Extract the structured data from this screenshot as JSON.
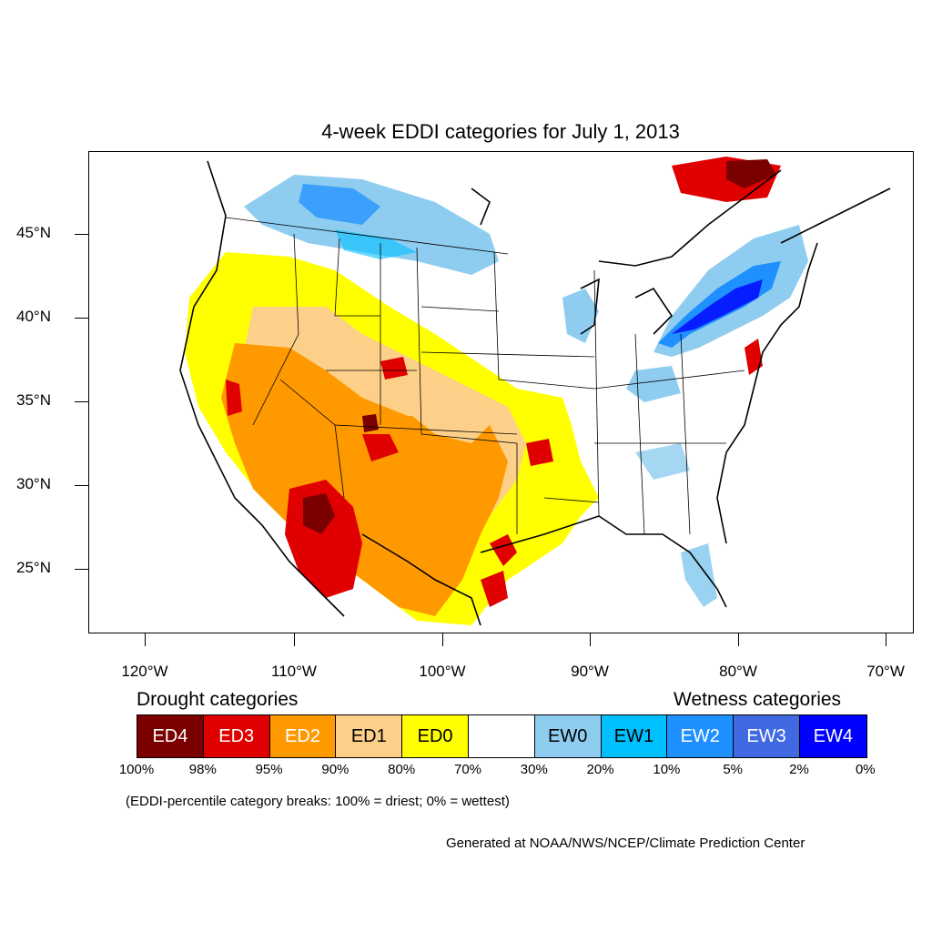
{
  "title": "4-week EDDI categories for July 1, 2013",
  "map": {
    "latitude_labels": [
      "45°N",
      "40°N",
      "35°N",
      "30°N",
      "25°N"
    ],
    "longitude_labels": [
      "120°W",
      "110°W",
      "100°W",
      "90°W",
      "80°W",
      "70°W"
    ],
    "colors": {
      "ED4": "#7a0000",
      "ED3": "#e00000",
      "ED2": "#ff9900",
      "ED1": "#fdd08a",
      "ED0": "#ffff00",
      "neutral": "#ffffff",
      "EW0": "#8fcdf0",
      "EW1": "#00bfff",
      "EW2": "#1e90ff",
      "EW3": "#4169e1",
      "EW4": "#0000ff"
    }
  },
  "legend": {
    "drought_heading": "Drought categories",
    "wetness_heading": "Wetness categories",
    "categories": [
      {
        "label": "ED4",
        "color": "#7a0000",
        "text_color": "#ffffff"
      },
      {
        "label": "ED3",
        "color": "#e00000",
        "text_color": "#ffffff"
      },
      {
        "label": "ED2",
        "color": "#ff9900",
        "text_color": "#ffffff"
      },
      {
        "label": "ED1",
        "color": "#fdd08a",
        "text_color": "#000000"
      },
      {
        "label": "ED0",
        "color": "#ffff00",
        "text_color": "#000000"
      },
      {
        "label": "",
        "color": "#ffffff",
        "text_color": "#000000"
      },
      {
        "label": "EW0",
        "color": "#8fcdf0",
        "text_color": "#000000"
      },
      {
        "label": "EW1",
        "color": "#00bfff",
        "text_color": "#000000"
      },
      {
        "label": "EW2",
        "color": "#1e90ff",
        "text_color": "#ffffff"
      },
      {
        "label": "EW3",
        "color": "#4169e1",
        "text_color": "#ffffff"
      },
      {
        "label": "EW4",
        "color": "#0000ff",
        "text_color": "#ffffff"
      }
    ],
    "percent_breaks": [
      "100%",
      "98%",
      "95%",
      "90%",
      "80%",
      "70%",
      "30%",
      "20%",
      "10%",
      "5%",
      "2%",
      "0%"
    ]
  },
  "note": "(EDDI-percentile category breaks: 100% = driest; 0% = wettest)",
  "credit": "Generated at NOAA/NWS/NCEP/Climate Prediction Center"
}
